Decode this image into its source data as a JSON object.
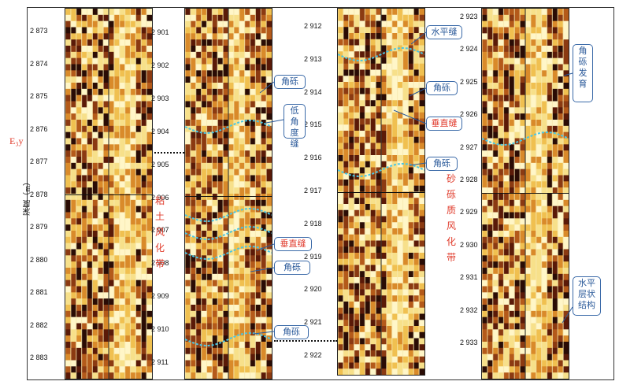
{
  "axis_label": "深度（m）",
  "tracks": [
    {
      "depths": [
        "2 873",
        "2 874",
        "2 875",
        "2 876",
        "2 877",
        "2 878",
        "2 879",
        "2 880",
        "2 881",
        "2 882",
        "2 883"
      ]
    },
    {
      "depths": [
        "2 901",
        "2 902",
        "2 903",
        "2 904",
        "2 905",
        "2 906",
        "2 907",
        "2 908",
        "2 909",
        "2 910",
        "2 911"
      ]
    },
    {
      "depths": [
        "2 912",
        "2 913",
        "2 914",
        "2 915",
        "2 916",
        "2 917",
        "2 918",
        "2 919",
        "2 920",
        "2 921",
        "2 922"
      ]
    },
    {
      "depths": [
        "2 923",
        "2 924",
        "2 925",
        "2 926",
        "2 927",
        "2 928",
        "2 929",
        "2 930",
        "2 931",
        "2 932",
        "2 933"
      ]
    }
  ],
  "formation_label": "E₃y",
  "zones": {
    "clay_weathering": [
      "粘",
      "土",
      "风",
      "化",
      "带"
    ],
    "gravel_weathering": [
      "砂",
      "砾",
      "质",
      "风",
      "化",
      "带"
    ]
  },
  "annotations": {
    "t2_breccia_top": "角砾",
    "t2_low_angle": "低角度缝",
    "t2_vertical": "垂直缝",
    "t2_breccia_mid": "角砾",
    "t2_breccia_bottom": "角砾",
    "t3_horizontal": "水平缝",
    "t3_breccia_a": "角砾",
    "t3_vertical": "垂直缝",
    "t3_breccia_b": "角砾",
    "t4_breccia_dev": "角砾发育",
    "t4_horizontal_layer": "水平层状结构"
  },
  "colors": {
    "zone_text": "#e03a2a",
    "annotation_text": "#2b5a9a",
    "annotation_border": "#3b6aa8",
    "trace_line": "#49c6e5"
  }
}
